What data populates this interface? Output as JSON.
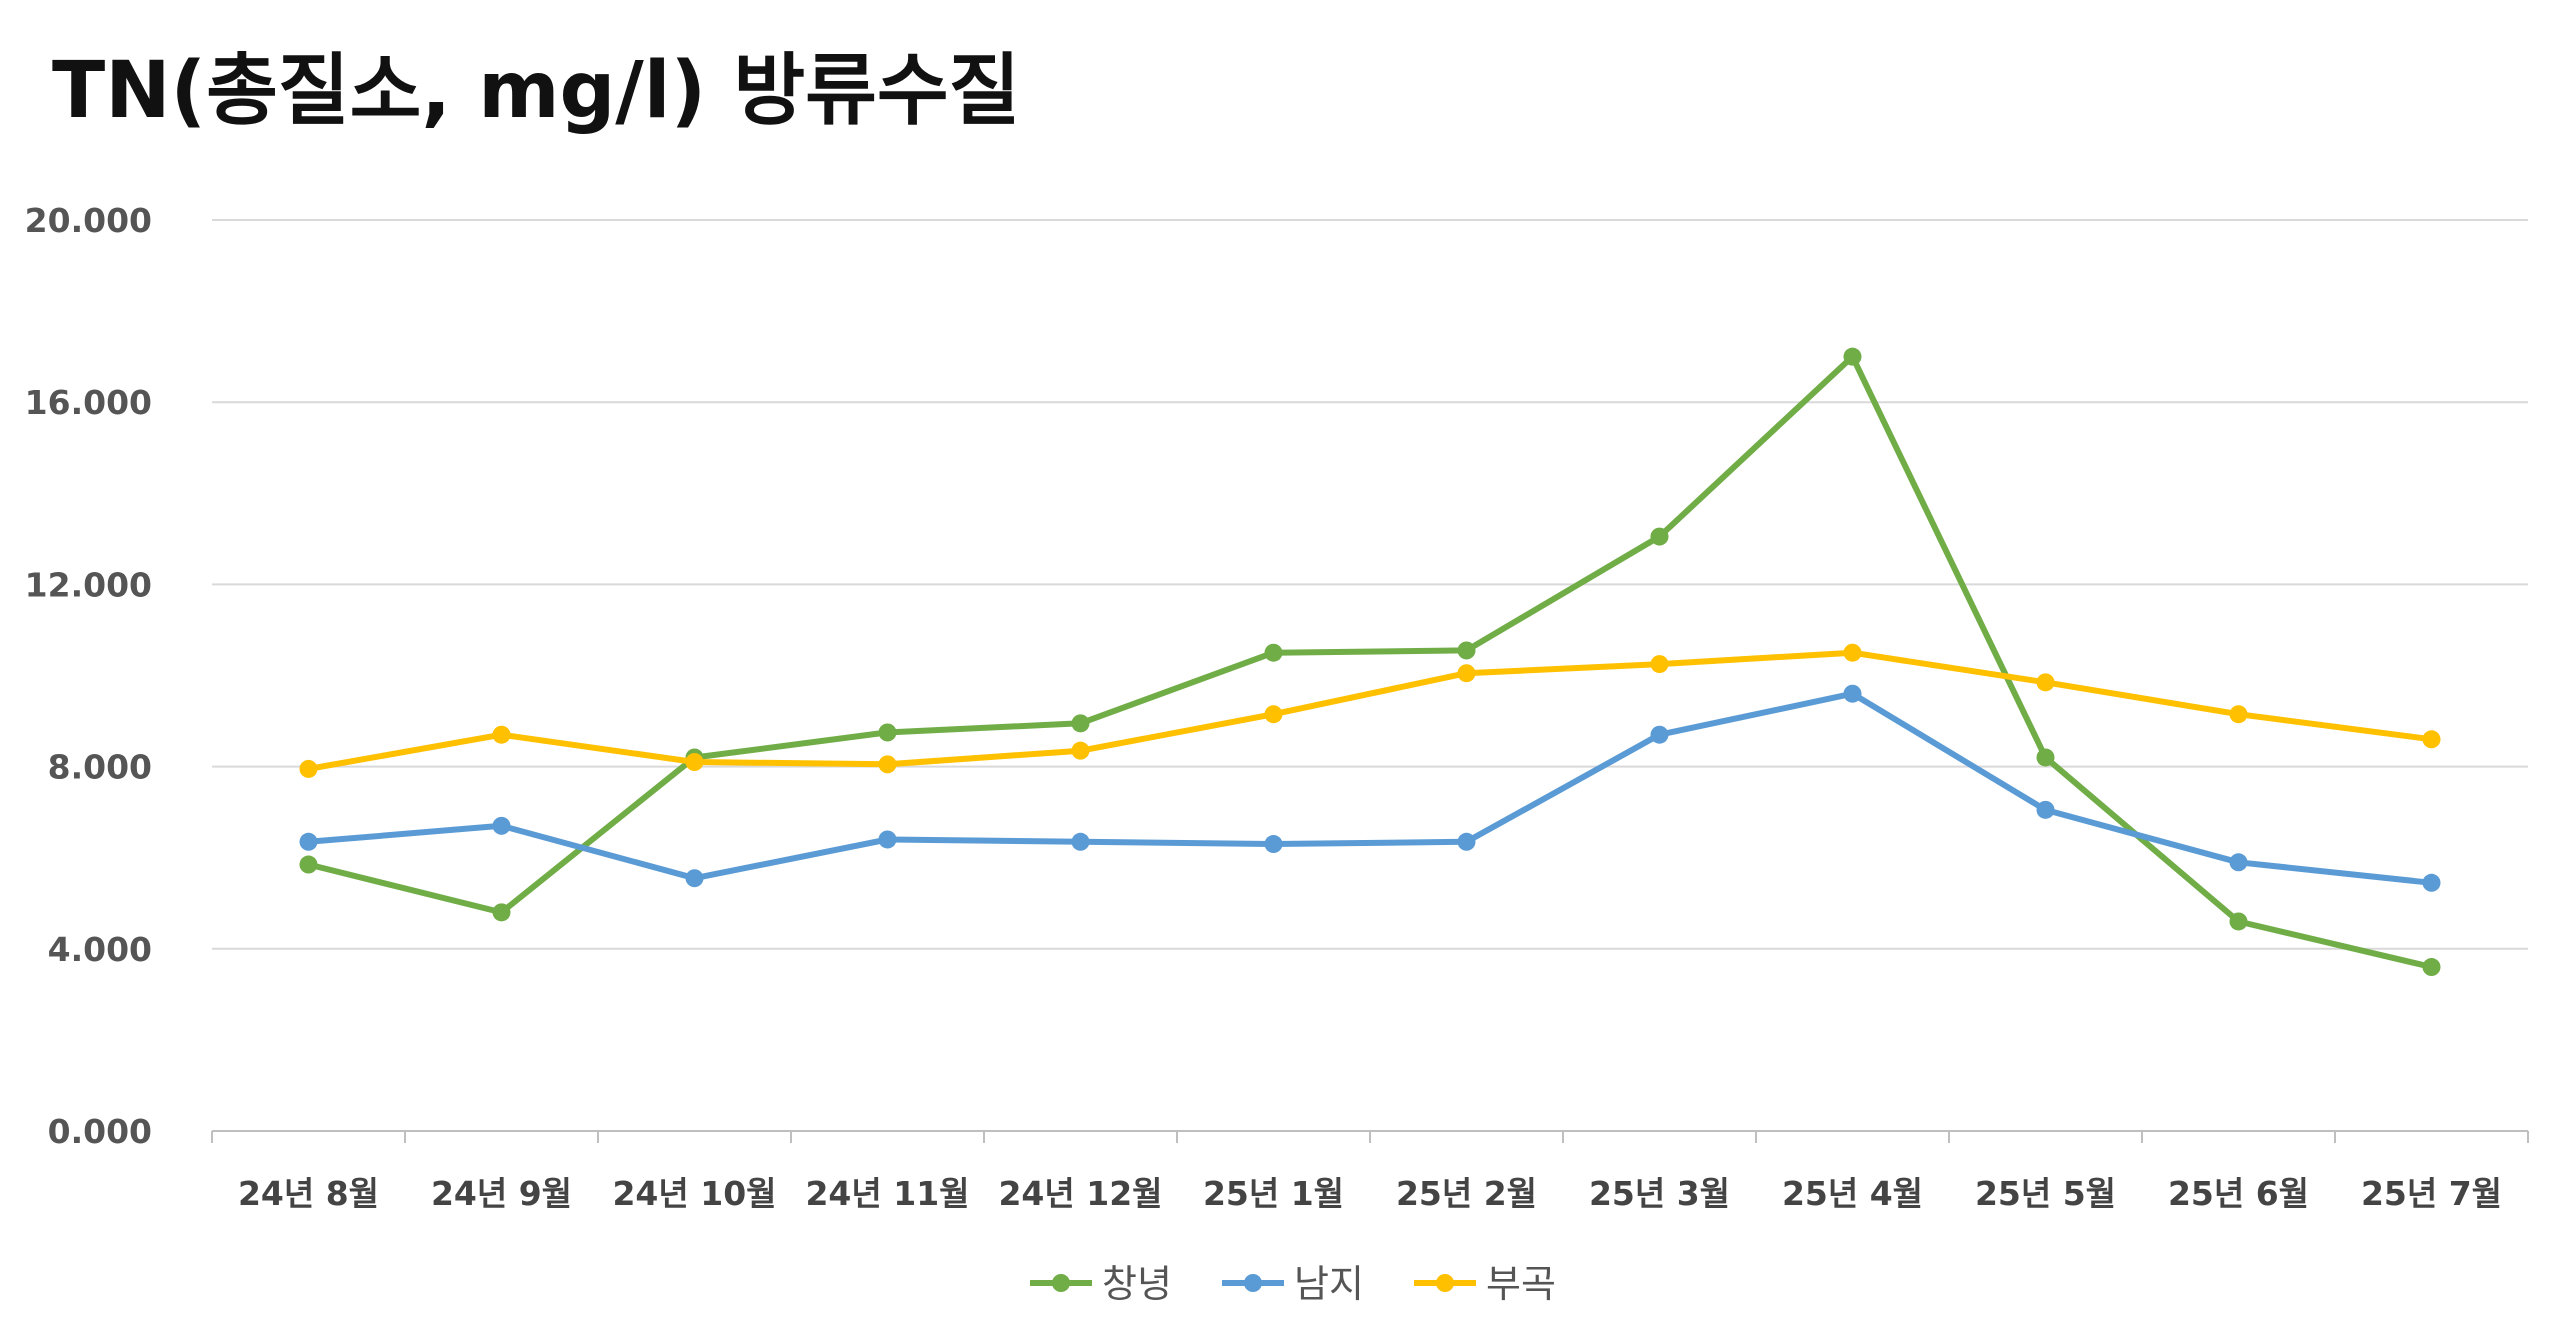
{
  "chart_data": {
    "type": "line",
    "title": "TN(총질소, mg/l) 방류수질",
    "categories": [
      "24년 8월",
      "24년 9월",
      "24년 10월",
      "24년 11월",
      "24년 12월",
      "25년 1월",
      "25년 2월",
      "25년 3월",
      "25년 4월",
      "25년 5월",
      "25년 6월",
      "25년 7월"
    ],
    "ylim": [
      0,
      20
    ],
    "yticks": [
      "0.000",
      "4.000",
      "8.000",
      "12.000",
      "16.000",
      "20.000"
    ],
    "ytick_values": [
      0,
      4,
      8,
      12,
      16,
      20
    ],
    "grid": true,
    "legend_position": "bottom-center",
    "series": [
      {
        "name": "창녕",
        "color": "#70AD47",
        "values": [
          5.85,
          4.8,
          8.2,
          8.75,
          8.95,
          10.5,
          10.55,
          13.05,
          17.0,
          8.2,
          4.6,
          3.6
        ]
      },
      {
        "name": "남지",
        "color": "#5B9BD5",
        "values": [
          6.35,
          6.7,
          5.55,
          6.4,
          6.35,
          6.3,
          6.35,
          8.7,
          9.6,
          7.05,
          5.9,
          5.45
        ]
      },
      {
        "name": "부곡",
        "color": "#FFC000",
        "values": [
          7.95,
          8.7,
          8.1,
          8.05,
          8.35,
          9.15,
          10.05,
          10.25,
          10.5,
          9.85,
          9.15,
          8.6
        ]
      }
    ]
  }
}
